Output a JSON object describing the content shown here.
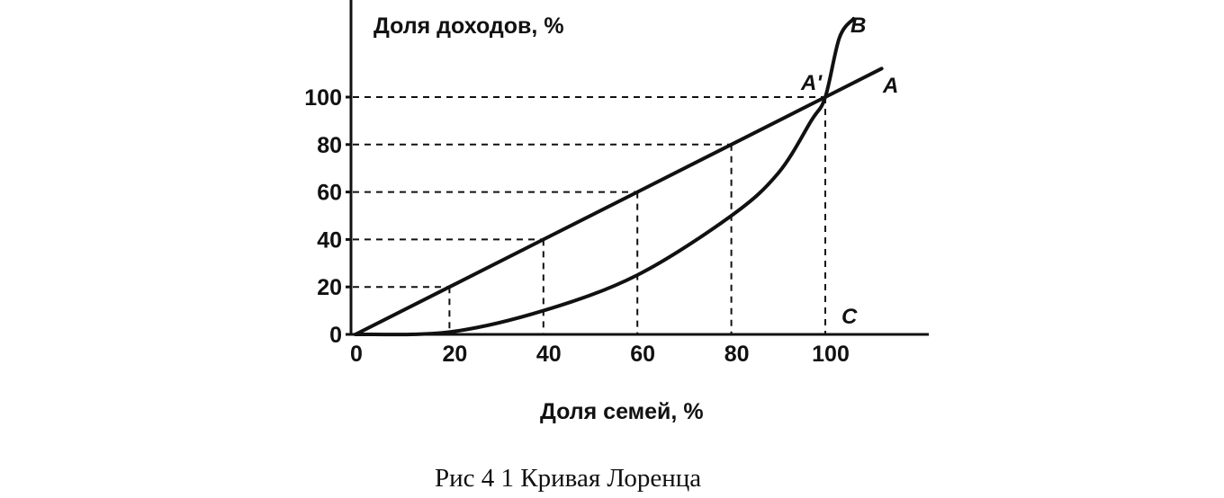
{
  "chart_data": {
    "type": "line",
    "ylabel": "Доля доходов, %",
    "xlabel": "Доля семей, %",
    "caption": "Рис 4 1 Кривая Лоренца",
    "x_ticks": [
      "0",
      "20",
      "40",
      "60",
      "80",
      "100"
    ],
    "y_ticks": [
      "0",
      "20",
      "40",
      "60",
      "80",
      "100"
    ],
    "xlim": [
      0,
      120
    ],
    "ylim": [
      0,
      135
    ],
    "point_labels": {
      "a_prime": "A'",
      "a": "A",
      "b": "B",
      "c": "C"
    },
    "series": [
      {
        "name": "A",
        "x": [
          0,
          20,
          40,
          60,
          80,
          100,
          112
        ],
        "y": [
          0,
          20,
          40,
          60,
          80,
          100,
          112
        ]
      },
      {
        "name": "B",
        "x": [
          0,
          20,
          40,
          60,
          80,
          90,
          97,
          100,
          103,
          106
        ],
        "y": [
          0,
          1,
          10,
          25,
          50,
          68,
          90,
          100,
          125,
          133
        ]
      }
    ],
    "guides": [
      {
        "x": 20,
        "y": 20
      },
      {
        "x": 40,
        "y": 40
      },
      {
        "x": 60,
        "y": 60
      },
      {
        "x": 80,
        "y": 80
      },
      {
        "x": 100,
        "y": 100
      }
    ],
    "colors": {
      "ink": "#111111",
      "background": "#ffffff"
    }
  }
}
